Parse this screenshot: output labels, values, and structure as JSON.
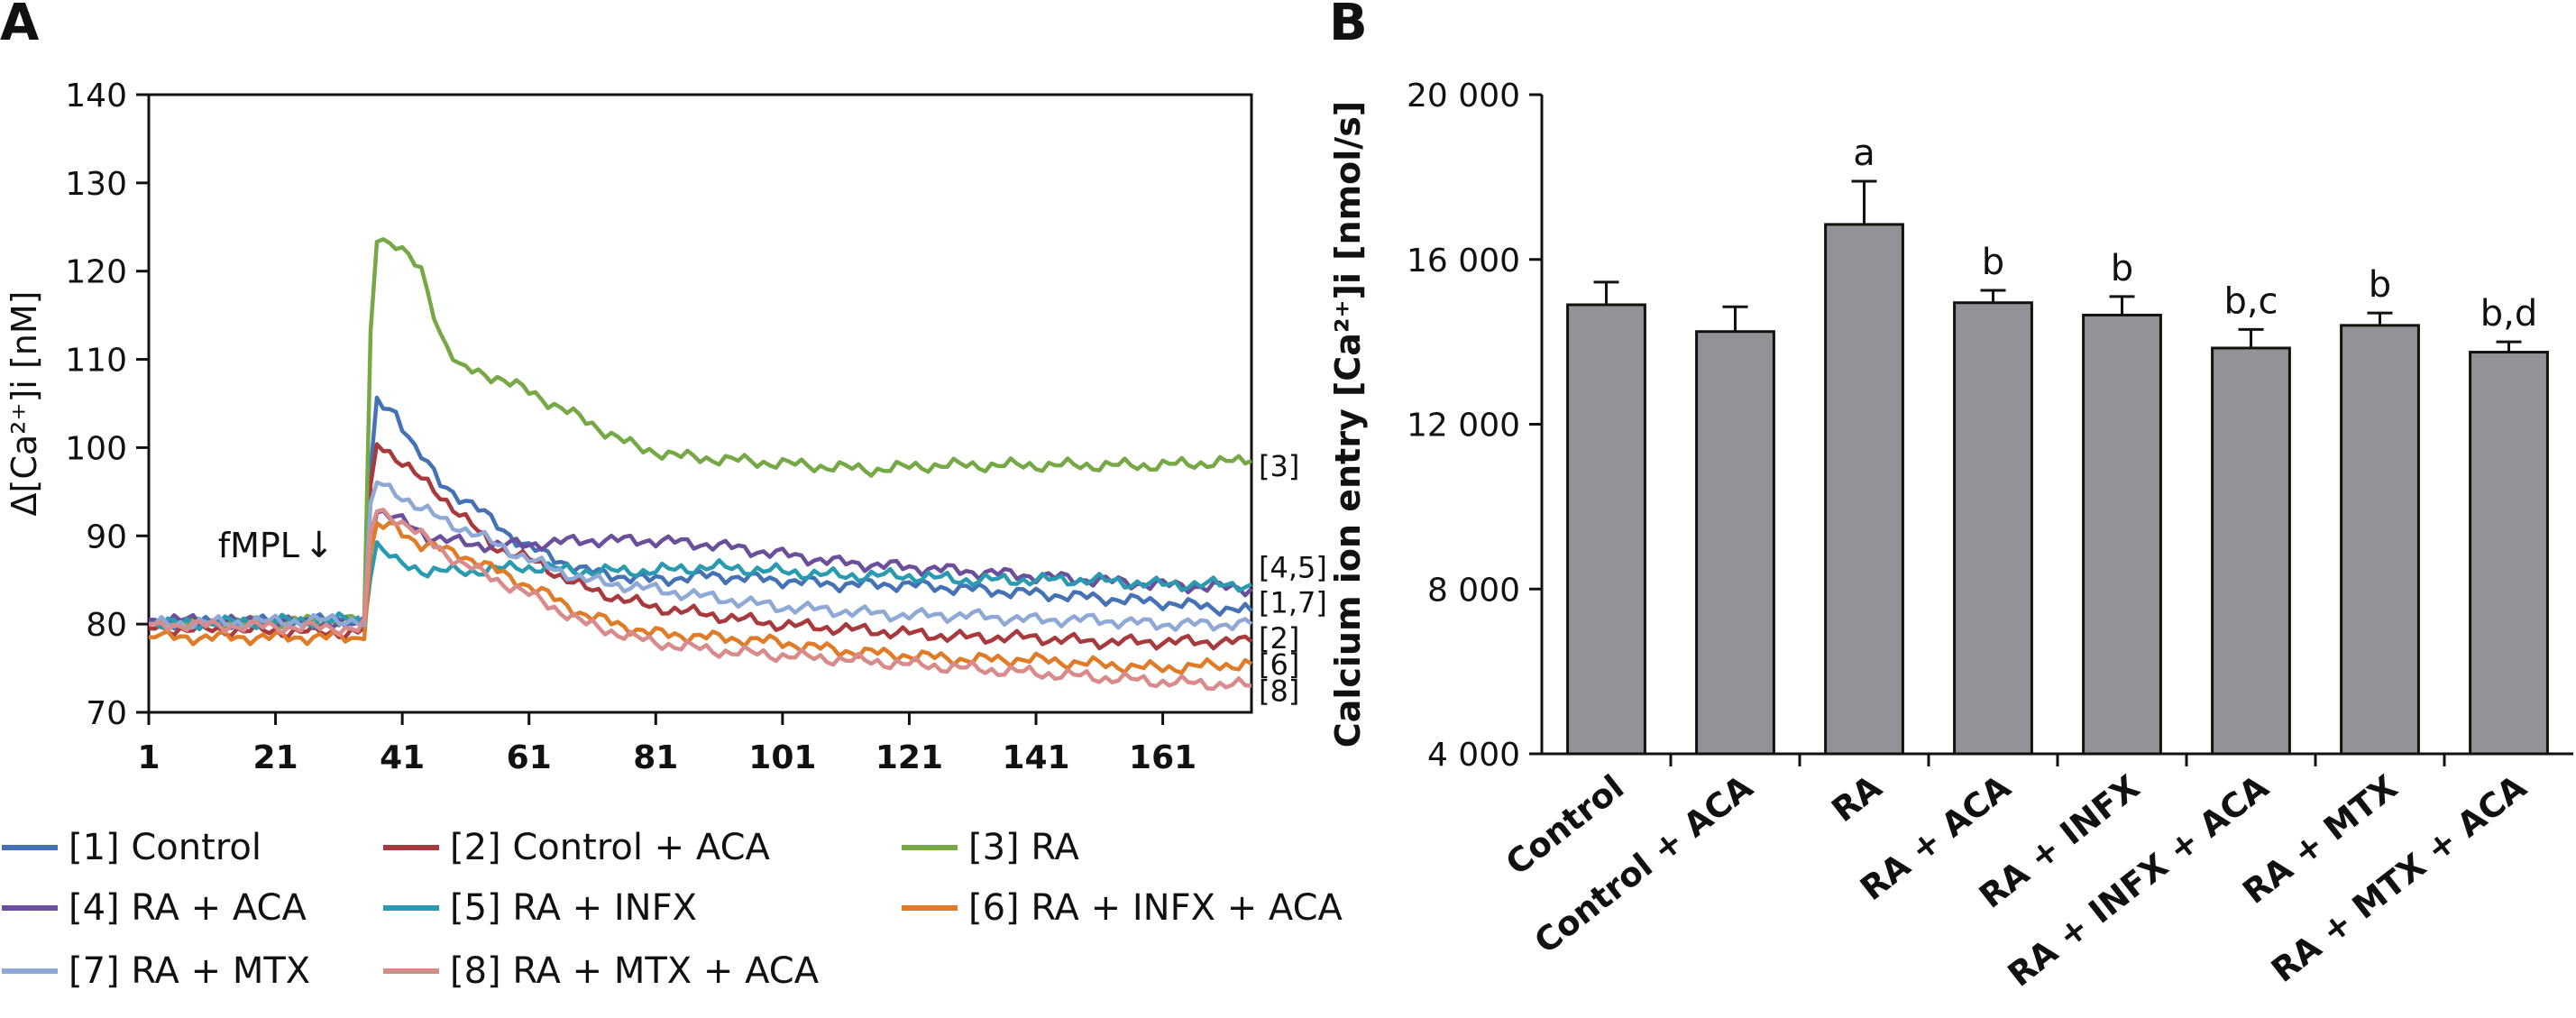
{
  "panels": {
    "a": "A",
    "b": "B"
  },
  "chart_data": [
    {
      "type": "line",
      "ylabel": "Δ[Ca²⁺]i [nM]",
      "xlim": [
        1,
        175
      ],
      "ylim": [
        70,
        140
      ],
      "x_ticks": [
        "1",
        "21",
        "41",
        "61",
        "81",
        "101",
        "121",
        "141",
        "161"
      ],
      "y_ticks": [
        "70",
        "80",
        "90",
        "100",
        "110",
        "120",
        "130",
        "140"
      ],
      "grid": false,
      "annotation": {
        "text": "fMPL",
        "arrow": "↓",
        "x": 34,
        "y": 80
      },
      "legend_position": "bottom",
      "series": [
        {
          "name": "[1] Control",
          "color": "#4472b4",
          "points": [
            [
              1,
              80
            ],
            [
              34,
              80.5
            ],
            [
              35,
              80
            ],
            [
              36,
              97
            ],
            [
              37,
              105
            ],
            [
              40,
              104
            ],
            [
              43,
              100
            ],
            [
              47,
              96
            ],
            [
              53,
              93
            ],
            [
              60,
              89
            ],
            [
              70,
              86
            ],
            [
              80,
              85
            ],
            [
              90,
              85.5
            ],
            [
              100,
              85
            ],
            [
              110,
              84.5
            ],
            [
              120,
              84.5
            ],
            [
              130,
              84
            ],
            [
              140,
              83.5
            ],
            [
              150,
              83
            ],
            [
              160,
              82.5
            ],
            [
              175,
              81.5
            ]
          ]
        },
        {
          "name": "[2] Control + ACA",
          "color": "#a83a3e",
          "points": [
            [
              1,
              79.5
            ],
            [
              34,
              79
            ],
            [
              35,
              79.5
            ],
            [
              36,
              95
            ],
            [
              37,
              100.5
            ],
            [
              40,
              99
            ],
            [
              43,
              97
            ],
            [
              48,
              94
            ],
            [
              55,
              89
            ],
            [
              62,
              87
            ],
            [
              70,
              84
            ],
            [
              80,
              82
            ],
            [
              90,
              81
            ],
            [
              100,
              80
            ],
            [
              110,
              79.5
            ],
            [
              120,
              79
            ],
            [
              130,
              78.5
            ],
            [
              140,
              78.5
            ],
            [
              150,
              78
            ],
            [
              160,
              78
            ],
            [
              175,
              78
            ]
          ]
        },
        {
          "name": "[3] RA",
          "color": "#76a846",
          "points": [
            [
              1,
              80
            ],
            [
              34,
              80.5
            ],
            [
              35,
              80
            ],
            [
              36,
              113
            ],
            [
              37,
              124
            ],
            [
              40,
              123
            ],
            [
              44,
              120
            ],
            [
              47,
              113
            ],
            [
              50,
              109
            ],
            [
              56,
              108
            ],
            [
              62,
              106
            ],
            [
              70,
              103
            ],
            [
              78,
              100
            ],
            [
              85,
              99
            ],
            [
              95,
              98.5
            ],
            [
              105,
              98
            ],
            [
              115,
              97.5
            ],
            [
              125,
              98
            ],
            [
              135,
              98
            ],
            [
              145,
              98
            ],
            [
              160,
              98
            ],
            [
              175,
              98.5
            ]
          ]
        },
        {
          "name": "[4] RA + ACA",
          "color": "#6b4f9b",
          "points": [
            [
              1,
              80.5
            ],
            [
              34,
              80
            ],
            [
              35,
              80.5
            ],
            [
              36,
              90
            ],
            [
              37,
              93
            ],
            [
              40,
              92
            ],
            [
              45,
              90
            ],
            [
              52,
              89
            ],
            [
              60,
              89
            ],
            [
              70,
              89.5
            ],
            [
              80,
              89.5
            ],
            [
              90,
              89
            ],
            [
              100,
              88
            ],
            [
              110,
              87
            ],
            [
              120,
              86.5
            ],
            [
              130,
              86
            ],
            [
              140,
              85.5
            ],
            [
              150,
              85
            ],
            [
              160,
              84.5
            ],
            [
              175,
              84
            ]
          ]
        },
        {
          "name": "[5] RA + INFX",
          "color": "#2a9ab0",
          "points": [
            [
              1,
              80
            ],
            [
              34,
              80.5
            ],
            [
              35,
              80
            ],
            [
              36,
              86
            ],
            [
              37,
              89
            ],
            [
              40,
              87
            ],
            [
              45,
              86
            ],
            [
              52,
              86
            ],
            [
              60,
              86.5
            ],
            [
              70,
              86
            ],
            [
              80,
              86
            ],
            [
              90,
              86.5
            ],
            [
              100,
              86
            ],
            [
              110,
              85.5
            ],
            [
              120,
              85.5
            ],
            [
              130,
              85
            ],
            [
              140,
              85
            ],
            [
              150,
              85
            ],
            [
              160,
              84.5
            ],
            [
              175,
              84.5
            ]
          ]
        },
        {
          "name": "[6] RA + INFX + ACA",
          "color": "#e07b28",
          "points": [
            [
              1,
              78.5
            ],
            [
              34,
              78.5
            ],
            [
              35,
              79
            ],
            [
              36,
              88
            ],
            [
              37,
              91
            ],
            [
              40,
              91
            ],
            [
              44,
              89
            ],
            [
              50,
              88
            ],
            [
              56,
              86
            ],
            [
              62,
              84
            ],
            [
              70,
              81
            ],
            [
              80,
              79
            ],
            [
              90,
              78.5
            ],
            [
              100,
              78
            ],
            [
              110,
              77
            ],
            [
              120,
              76.5
            ],
            [
              130,
              76
            ],
            [
              140,
              76
            ],
            [
              150,
              75.5
            ],
            [
              160,
              75
            ],
            [
              175,
              75.5
            ]
          ]
        },
        {
          "name": "[7] RA + MTX",
          "color": "#8fa9d6",
          "points": [
            [
              1,
              80
            ],
            [
              34,
              80.5
            ],
            [
              35,
              80
            ],
            [
              36,
              93
            ],
            [
              37,
              96
            ],
            [
              40,
              95
            ],
            [
              44,
              93
            ],
            [
              50,
              91
            ],
            [
              56,
              89
            ],
            [
              62,
              87
            ],
            [
              70,
              85
            ],
            [
              80,
              84
            ],
            [
              90,
              83
            ],
            [
              100,
              82
            ],
            [
              110,
              81.5
            ],
            [
              120,
              81
            ],
            [
              130,
              81
            ],
            [
              140,
              80.5
            ],
            [
              150,
              80.5
            ],
            [
              160,
              80
            ],
            [
              175,
              80
            ]
          ]
        },
        {
          "name": "[8] RA + MTX + ACA",
          "color": "#d98a8a",
          "points": [
            [
              1,
              80
            ],
            [
              34,
              79.5
            ],
            [
              35,
              80
            ],
            [
              36,
              90
            ],
            [
              37,
              93
            ],
            [
              40,
              92
            ],
            [
              44,
              90
            ],
            [
              50,
              87
            ],
            [
              56,
              85
            ],
            [
              62,
              83
            ],
            [
              70,
              80
            ],
            [
              80,
              78
            ],
            [
              90,
              77
            ],
            [
              100,
              76.5
            ],
            [
              110,
              76
            ],
            [
              120,
              75.5
            ],
            [
              130,
              75
            ],
            [
              140,
              74.5
            ],
            [
              150,
              74
            ],
            [
              160,
              73.5
            ],
            [
              175,
              73
            ]
          ]
        }
      ],
      "end_labels": [
        {
          "text": "[3]",
          "y": 98
        },
        {
          "text": "[4,5]",
          "y": 86.5
        },
        {
          "text": "[1,7]",
          "y": 82.5
        },
        {
          "text": "[2]",
          "y": 78.5
        },
        {
          "text": "[6]",
          "y": 75.5
        },
        {
          "text": "[8]",
          "y": 72.5
        }
      ]
    },
    {
      "type": "bar",
      "ylabel": "Calcium ion entry [Ca²⁺]i [nmol/s]",
      "ylim": [
        4000,
        20000
      ],
      "y_ticks": [
        "4 000",
        "8 000",
        "12 000",
        "16 000",
        "20 000"
      ],
      "y_tick_values": [
        4000,
        8000,
        12000,
        16000,
        20000
      ],
      "categories": [
        "Control",
        "Control + ACA",
        "RA",
        "RA + ACA",
        "RA + INFX",
        "RA + INFX + ACA",
        "RA + MTX",
        "RA + MTX + ACA"
      ],
      "values": [
        14900,
        14250,
        16850,
        14950,
        14650,
        13850,
        14400,
        13750
      ],
      "errors": [
        550,
        600,
        1050,
        300,
        450,
        450,
        300,
        250
      ],
      "annotations": [
        "",
        "",
        "a",
        "b",
        "b",
        "b,c",
        "b",
        "b,d"
      ],
      "bar_color": "#929396",
      "grid": false
    }
  ]
}
